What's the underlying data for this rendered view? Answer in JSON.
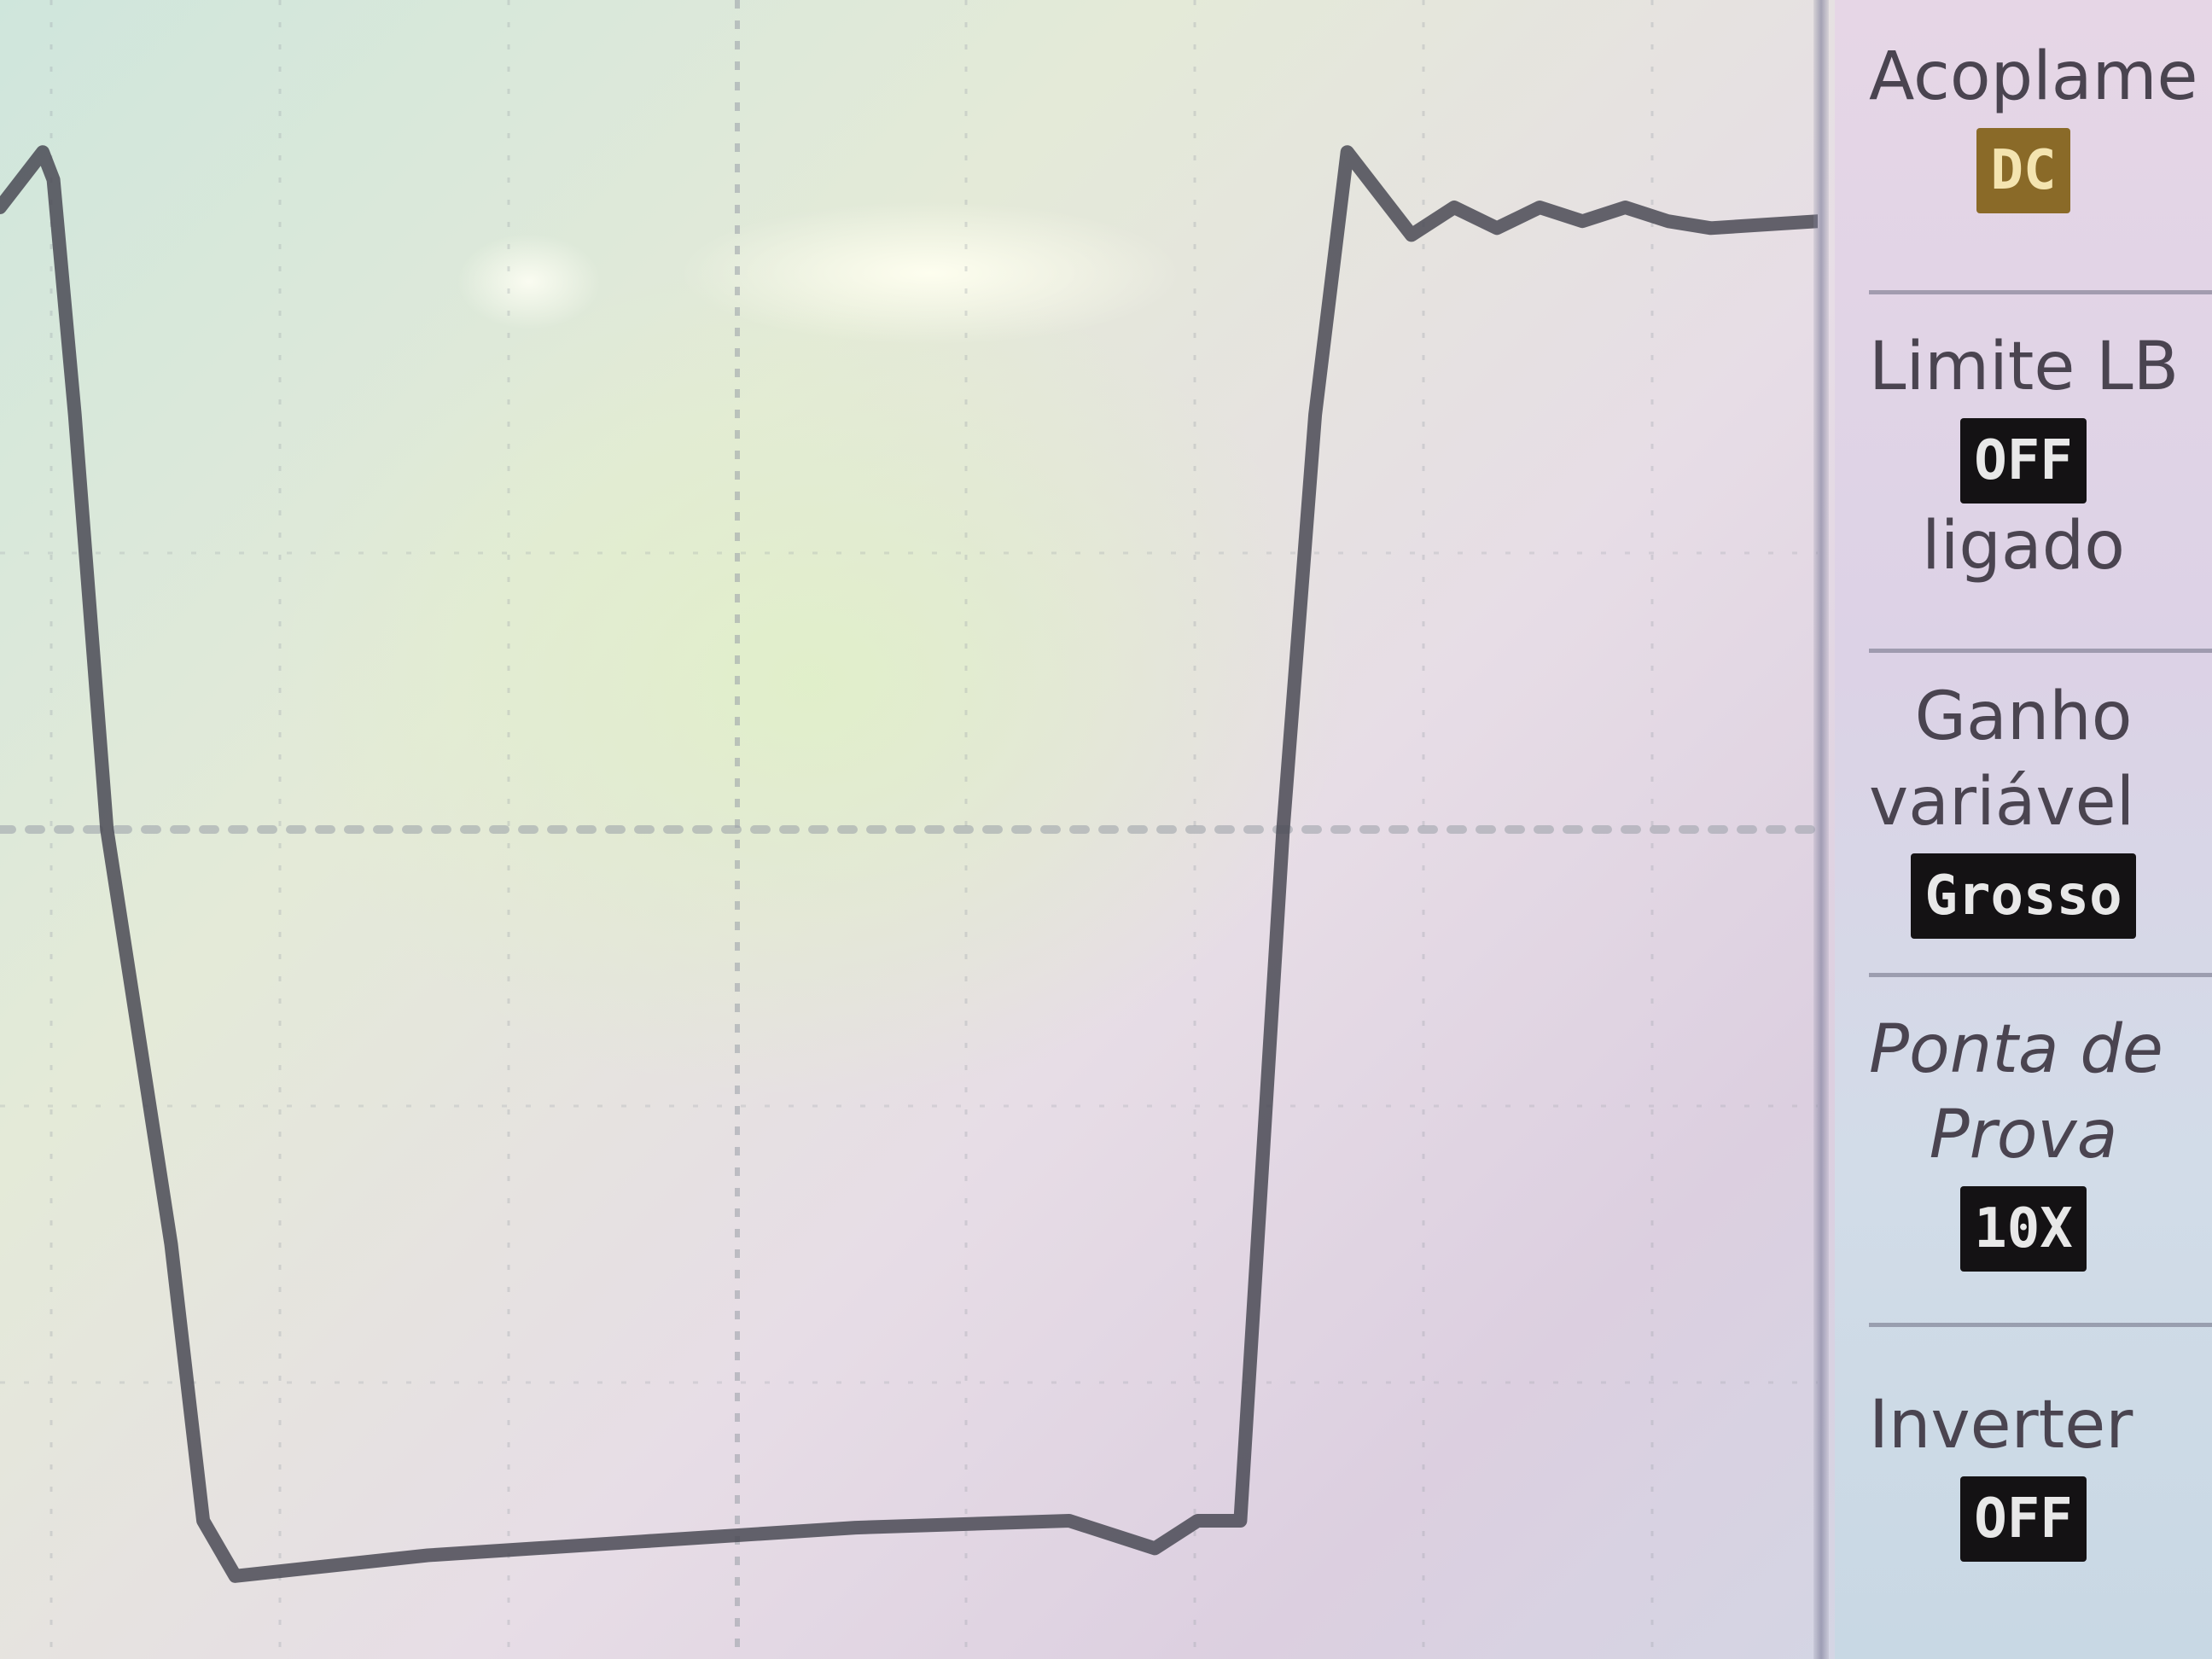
{
  "side_menu": {
    "items": [
      {
        "label": "Acoplame",
        "value": "DC",
        "variant": "gold"
      },
      {
        "label": "Limite LB",
        "sub_label": "ligado",
        "value": "OFF"
      },
      {
        "label": "Ganho",
        "sub_label": "variável",
        "value": "Grosso"
      },
      {
        "label": "Ponta de",
        "sub_label": "Prova",
        "value": "10X"
      },
      {
        "label": "Inverter",
        "value": "OFF"
      }
    ]
  },
  "colors": {
    "trace": "#4a4a55",
    "grid": "#9aa0a8",
    "value_box": "#141214",
    "value_box_gold": "#8a6a28"
  },
  "chart_data": {
    "type": "line",
    "title": "",
    "xlabel": "",
    "ylabel": "",
    "grid": true,
    "xlim": [
      0,
      8.5
    ],
    "ylim": [
      -6,
      6
    ],
    "series": [
      {
        "name": "",
        "x": [
          0,
          0.2,
          0.25,
          0.35,
          0.5,
          0.8,
          0.95,
          1.1,
          1.4,
          2.0,
          3.0,
          4.0,
          5.0,
          5.4,
          5.6,
          5.8,
          6.0,
          6.15,
          6.3,
          6.45,
          6.6,
          6.8,
          7.0,
          7.2,
          7.4,
          7.6,
          7.8,
          8.0,
          8.5
        ],
        "y": [
          4.5,
          4.9,
          4.7,
          3.0,
          0.0,
          -3.0,
          -5.0,
          -5.4,
          -5.35,
          -5.25,
          -5.15,
          -5.05,
          -5.0,
          -5.2,
          -5.0,
          -5.0,
          0.0,
          3.0,
          4.9,
          4.6,
          4.3,
          4.5,
          4.35,
          4.5,
          4.4,
          4.5,
          4.4,
          4.35,
          4.4
        ]
      }
    ]
  }
}
